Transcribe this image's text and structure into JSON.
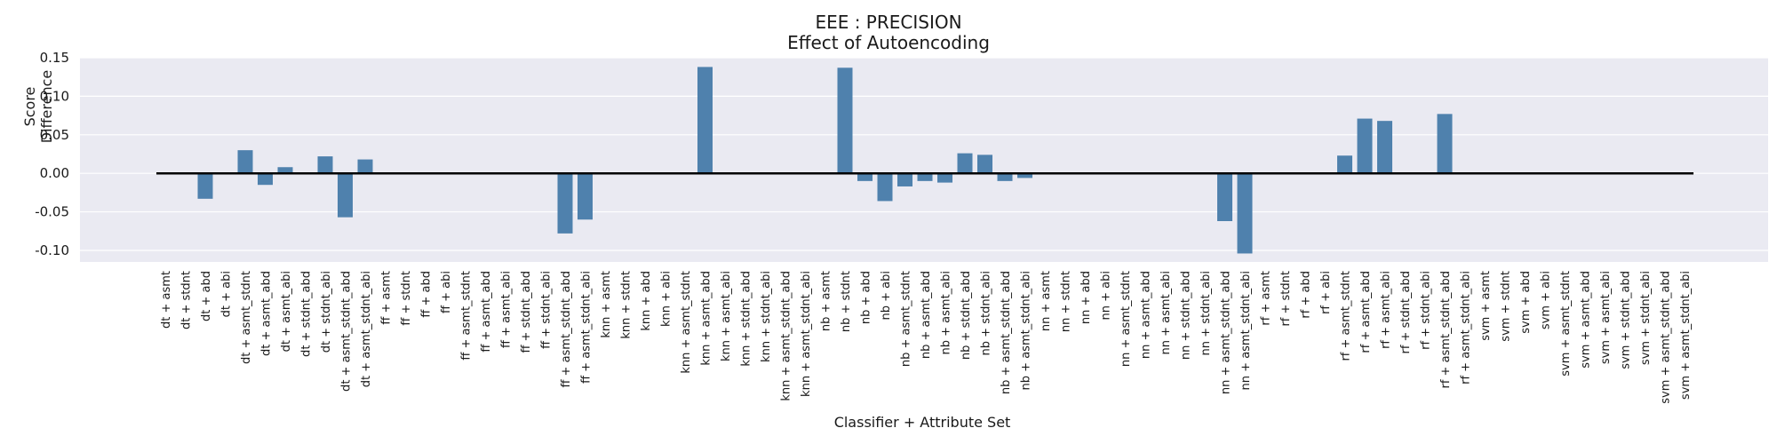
{
  "chart_data": {
    "type": "bar",
    "title": "EEE : PRECISION",
    "subtitle": "Effect of Autoencoding",
    "xlabel": "Classifier + Attribute Set",
    "ylabel": "Score Difference",
    "ylim": [
      -0.115,
      0.15
    ],
    "yticks": [
      "0.15",
      "0.10",
      "0.05",
      "0.00",
      "-0.05",
      "-0.10"
    ],
    "ytick_values": [
      0.15,
      0.1,
      0.05,
      0.0,
      -0.05,
      -0.1
    ],
    "grid": true,
    "bar_color": "#4f81ad",
    "background_color": "#eaeaf2",
    "zero_line_color": "#000000",
    "categories": [
      "dt + asmt",
      "dt + stdnt",
      "dt + abd",
      "dt + abi",
      "dt + asmt_stdnt",
      "dt + asmt_abd",
      "dt + asmt_abi",
      "dt + stdnt_abd",
      "dt + stdnt_abi",
      "dt + asmt_stdnt_abd",
      "dt + asmt_stdnt_abi",
      "ff + asmt",
      "ff + stdnt",
      "ff + abd",
      "ff + abi",
      "ff + asmt_stdnt",
      "ff + asmt_abd",
      "ff + asmt_abi",
      "ff + stdnt_abd",
      "ff + stdnt_abi",
      "ff + asmt_stdnt_abd",
      "ff + asmt_stdnt_abi",
      "knn + asmt",
      "knn + stdnt",
      "knn + abd",
      "knn + abi",
      "knn + asmt_stdnt",
      "knn + asmt_abd",
      "knn + asmt_abi",
      "knn + stdnt_abd",
      "knn + stdnt_abi",
      "knn + asmt_stdnt_abd",
      "knn + asmt_stdnt_abi",
      "nb + asmt",
      "nb + stdnt",
      "nb + abd",
      "nb + abi",
      "nb + asmt_stdnt",
      "nb + asmt_abd",
      "nb + asmt_abi",
      "nb + stdnt_abd",
      "nb + stdnt_abi",
      "nb + asmt_stdnt_abd",
      "nb + asmt_stdnt_abi",
      "nn + asmt",
      "nn + stdnt",
      "nn + abd",
      "nn + abi",
      "nn + asmt_stdnt",
      "nn + asmt_abd",
      "nn + asmt_abi",
      "nn + stdnt_abd",
      "nn + stdnt_abi",
      "nn + asmt_stdnt_abd",
      "nn + asmt_stdnt_abi",
      "rf + asmt",
      "rf + stdnt",
      "rf + abd",
      "rf + abi",
      "rf + asmt_stdnt",
      "rf + asmt_abd",
      "rf + asmt_abi",
      "rf + stdnt_abd",
      "rf + stdnt_abi",
      "rf + asmt_stdnt_abd",
      "rf + asmt_stdnt_abi",
      "svm + asmt",
      "svm + stdnt",
      "svm + abd",
      "svm + abi",
      "svm + asmt_stdnt",
      "svm + asmt_abd",
      "svm + asmt_abi",
      "svm + stdnt_abd",
      "svm + stdnt_abi",
      "svm + asmt_stdnt_abd",
      "svm + asmt_stdnt_abi"
    ],
    "values": [
      0,
      0,
      -0.033,
      0,
      0.03,
      -0.015,
      0.008,
      0,
      0.022,
      -0.057,
      0.018,
      0,
      0,
      0,
      0,
      0,
      0,
      0,
      0,
      0,
      -0.078,
      -0.06,
      0,
      0,
      0,
      0,
      0,
      0.138,
      0,
      0,
      0,
      0,
      0,
      0,
      0.137,
      -0.01,
      -0.036,
      -0.017,
      -0.01,
      -0.012,
      0.026,
      0.024,
      -0.01,
      -0.006,
      0,
      0,
      0,
      0,
      0,
      0,
      0,
      0,
      0,
      -0.062,
      -0.104,
      0,
      0,
      0,
      0,
      0.023,
      0.071,
      0.068,
      0,
      0,
      0.077,
      0,
      0,
      0,
      0,
      0,
      0,
      0,
      0,
      0,
      0,
      0,
      0
    ]
  }
}
